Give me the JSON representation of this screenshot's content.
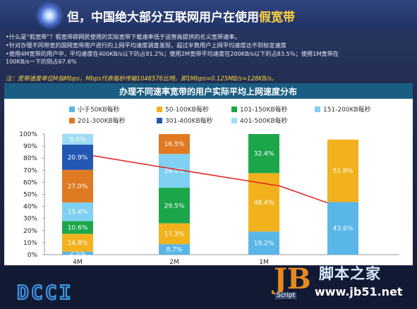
{
  "header": {
    "title_prefix": "但，中国绝大部分互联网用户在使用",
    "title_highlight": "假宽带"
  },
  "bullets": [
    "•什么是“假宽带”？假宽带即网民使用的实际宽带下载速率低于运营商提供的名义宽带速率。",
    "•针对办理不同带宽的固网宽带用户进行的上网平均速度调查发现，超过半数用户上网平均速度达不到标定速度",
    "•使用4M宽带的用户中，平均速度在400KB/s以下的占91.2%；使用2M宽带平均速度在200KB/s以下的占83.5%；使用1M宽带在",
    "100KB/s一下的则占67.6%"
  ],
  "note": "注：宽带速度单位M指Mbps，Mbps代表每秒传输1048576比特。即1Mbps=0.125MB/s=128KB/s。",
  "chart_data": {
    "type": "bar",
    "stacked": true,
    "title": "办理不同速率宽带的用户实际平均上网速度分布",
    "categories": [
      "4M",
      "2M",
      "1M",
      ""
    ],
    "ylim": [
      0,
      100
    ],
    "yticks": [
      "0%",
      "10%",
      "20%",
      "30%",
      "40%",
      "50%",
      "60%",
      "70%",
      "80%",
      "90%",
      "100%"
    ],
    "legend_position": "top",
    "series": [
      {
        "name": "小于50KB每秒",
        "color": "#5bb6e8",
        "values": [
          2.5,
          8.7,
          19.2,
          43.6
        ],
        "labels": [
          "2.5%",
          "8.7%",
          "19.2%",
          "43.6%"
        ]
      },
      {
        "name": "50-100KB每秒",
        "color": "#f2b21e",
        "values": [
          14.8,
          17.3,
          48.4,
          51.8
        ],
        "labels": [
          "14.8%",
          "17.3%",
          "48.4%",
          "51.8%"
        ]
      },
      {
        "name": "101-150KB每秒",
        "color": "#1ca64a",
        "values": [
          10.6,
          29.5,
          32.4,
          0
        ],
        "labels": [
          "10.6%",
          "29.5%",
          "32.4%",
          ""
        ]
      },
      {
        "name": "151-200KB每秒",
        "color": "#7fd0f2",
        "values": [
          15.4,
          28.0,
          0,
          0
        ],
        "labels": [
          "15.4%",
          "28.0%",
          "",
          ""
        ]
      },
      {
        "name": "201-300KB每秒",
        "color": "#e07a22",
        "values": [
          27.0,
          16.5,
          0,
          0
        ],
        "labels": [
          "27.0%",
          "16.5%",
          "",
          ""
        ]
      },
      {
        "name": "301-400KB每秒",
        "color": "#2457b3",
        "values": [
          20.9,
          0,
          0,
          0
        ],
        "labels": [
          "20.9%",
          "",
          "",
          ""
        ]
      },
      {
        "name": "401-500KB每秒",
        "color": "#9fdcf5",
        "values": [
          9.0,
          0,
          0,
          0
        ],
        "labels": [
          "9.0%",
          "",
          "",
          ""
        ]
      }
    ],
    "trend_line": {
      "color": "#e02020",
      "values": [
        82,
        73,
        57,
        43
      ]
    }
  },
  "footer": {
    "logo_text": "DCCI",
    "watermark_mark": "JB",
    "watermark_script": "Script",
    "watermark_cn": "脚本之家",
    "watermark_url": "www.jb51.net"
  }
}
